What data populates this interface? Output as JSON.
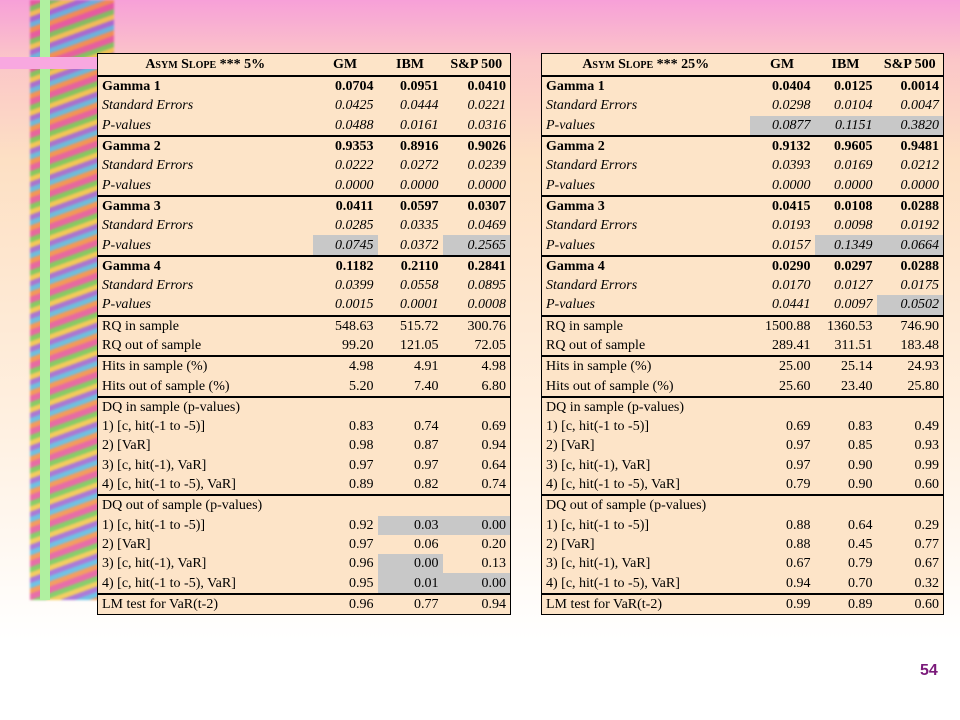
{
  "tables": [
    {
      "header": [
        "Asym Slope *** 5%",
        "GM",
        "IBM",
        "S&P 500"
      ],
      "groups": [
        {
          "rows": [
            [
              "Gamma 1",
              "0.0704",
              "0.0951",
              "0.0410"
            ],
            [
              "Standard Errors",
              "0.0425",
              "0.0444",
              "0.0221"
            ],
            [
              "P-values",
              "0.0488",
              "0.0161",
              "0.0316"
            ]
          ]
        },
        {
          "rows": [
            [
              "Gamma 2",
              "0.9353",
              "0.8916",
              "0.9026"
            ],
            [
              "Standard Errors",
              "0.0222",
              "0.0272",
              "0.0239"
            ],
            [
              "P-values",
              "0.0000",
              "0.0000",
              "0.0000"
            ]
          ]
        },
        {
          "rows": [
            [
              "Gamma 3",
              "0.0411",
              "0.0597",
              "0.0307"
            ],
            [
              "Standard Errors",
              "0.0285",
              "0.0335",
              "0.0469"
            ],
            [
              "P-values",
              "0.0745",
              "0.0372",
              "0.2565"
            ]
          ],
          "highlight": [
            [
              2,
              1
            ],
            [
              2,
              3
            ]
          ]
        },
        {
          "rows": [
            [
              "Gamma 4",
              "0.1182",
              "0.2110",
              "0.2841"
            ],
            [
              "Standard Errors",
              "0.0399",
              "0.0558",
              "0.0895"
            ],
            [
              "P-values",
              "0.0015",
              "0.0001",
              "0.0008"
            ]
          ]
        },
        {
          "rows": [
            [
              "RQ in sample",
              "548.63",
              "515.72",
              "300.76"
            ],
            [
              "RQ out of sample",
              "99.20",
              "121.05",
              "72.05"
            ]
          ]
        },
        {
          "rows": [
            [
              "Hits in sample (%)",
              "4.98",
              "4.91",
              "4.98"
            ],
            [
              "Hits out of sample (%)",
              "5.20",
              "7.40",
              "6.80"
            ]
          ]
        },
        {
          "rows": [
            [
              "DQ in sample (p-values)"
            ],
            [
              "1) [c, hit(-1 to -5)]",
              "0.83",
              "0.74",
              "0.69"
            ],
            [
              "2) [VaR]",
              "0.98",
              "0.87",
              "0.94"
            ],
            [
              "3) [c, hit(-1), VaR]",
              "0.97",
              "0.97",
              "0.64"
            ],
            [
              "4) [c, hit(-1 to -5), VaR]",
              "0.89",
              "0.82",
              "0.74"
            ]
          ]
        },
        {
          "rows": [
            [
              "DQ out of sample (p-values)"
            ],
            [
              "1) [c, hit(-1 to -5)]",
              "0.92",
              "0.03",
              "0.00"
            ],
            [
              "2) [VaR]",
              "0.97",
              "0.06",
              "0.20"
            ],
            [
              "3) [c, hit(-1), VaR]",
              "0.96",
              "0.00",
              "0.13"
            ],
            [
              "4) [c, hit(-1 to -5), VaR]",
              "0.95",
              "0.01",
              "0.00"
            ]
          ],
          "highlight": [
            [
              1,
              2
            ],
            [
              1,
              3
            ],
            [
              3,
              2
            ],
            [
              4,
              2
            ],
            [
              4,
              3
            ]
          ]
        },
        {
          "rows": [
            [
              "LM test for VaR(t-2)",
              "0.96",
              "0.77",
              "0.94"
            ]
          ]
        }
      ]
    },
    {
      "header": [
        "Asym Slope *** 25%",
        "GM",
        "IBM",
        "S&P 500"
      ],
      "groups": [
        {
          "rows": [
            [
              "Gamma 1",
              "0.0404",
              "0.0125",
              "0.0014"
            ],
            [
              "Standard Errors",
              "0.0298",
              "0.0104",
              "0.0047"
            ],
            [
              "P-values",
              "0.0877",
              "0.1151",
              "0.3820"
            ]
          ],
          "highlight": [
            [
              2,
              1
            ],
            [
              2,
              2
            ],
            [
              2,
              3
            ]
          ]
        },
        {
          "rows": [
            [
              "Gamma 2",
              "0.9132",
              "0.9605",
              "0.9481"
            ],
            [
              "Standard Errors",
              "0.0393",
              "0.0169",
              "0.0212"
            ],
            [
              "P-values",
              "0.0000",
              "0.0000",
              "0.0000"
            ]
          ]
        },
        {
          "rows": [
            [
              "Gamma 3",
              "0.0415",
              "0.0108",
              "0.0288"
            ],
            [
              "Standard Errors",
              "0.0193",
              "0.0098",
              "0.0192"
            ],
            [
              "P-values",
              "0.0157",
              "0.1349",
              "0.0664"
            ]
          ],
          "highlight": [
            [
              2,
              2
            ],
            [
              2,
              3
            ]
          ]
        },
        {
          "rows": [
            [
              "Gamma 4",
              "0.0290",
              "0.0297",
              "0.0288"
            ],
            [
              "Standard Errors",
              "0.0170",
              "0.0127",
              "0.0175"
            ],
            [
              "P-values",
              "0.0441",
              "0.0097",
              "0.0502"
            ]
          ],
          "highlight": [
            [
              2,
              3
            ]
          ]
        },
        {
          "rows": [
            [
              "RQ in sample",
              "1500.88",
              "1360.53",
              "746.90"
            ],
            [
              "RQ out of sample",
              "289.41",
              "311.51",
              "183.48"
            ]
          ]
        },
        {
          "rows": [
            [
              "Hits in sample (%)",
              "25.00",
              "25.14",
              "24.93"
            ],
            [
              "Hits out of sample (%)",
              "25.60",
              "23.40",
              "25.80"
            ]
          ]
        },
        {
          "rows": [
            [
              "DQ in sample (p-values)"
            ],
            [
              "1) [c, hit(-1 to -5)]",
              "0.69",
              "0.83",
              "0.49"
            ],
            [
              "2) [VaR]",
              "0.97",
              "0.85",
              "0.93"
            ],
            [
              "3) [c, hit(-1), VaR]",
              "0.97",
              "0.90",
              "0.99"
            ],
            [
              "4) [c, hit(-1 to -5), VaR]",
              "0.79",
              "0.90",
              "0.60"
            ]
          ]
        },
        {
          "rows": [
            [
              "DQ out of sample (p-values)"
            ],
            [
              "1) [c, hit(-1 to -5)]",
              "0.88",
              "0.64",
              "0.29"
            ],
            [
              "2) [VaR]",
              "0.88",
              "0.45",
              "0.77"
            ],
            [
              "3) [c, hit(-1), VaR]",
              "0.67",
              "0.79",
              "0.67"
            ],
            [
              "4) [c, hit(-1 to -5), VaR]",
              "0.94",
              "0.70",
              "0.32"
            ]
          ]
        },
        {
          "rows": [
            [
              "LM test for VaR(t-2)",
              "0.99",
              "0.89",
              "0.60"
            ]
          ]
        }
      ]
    }
  ],
  "page_number": "54"
}
